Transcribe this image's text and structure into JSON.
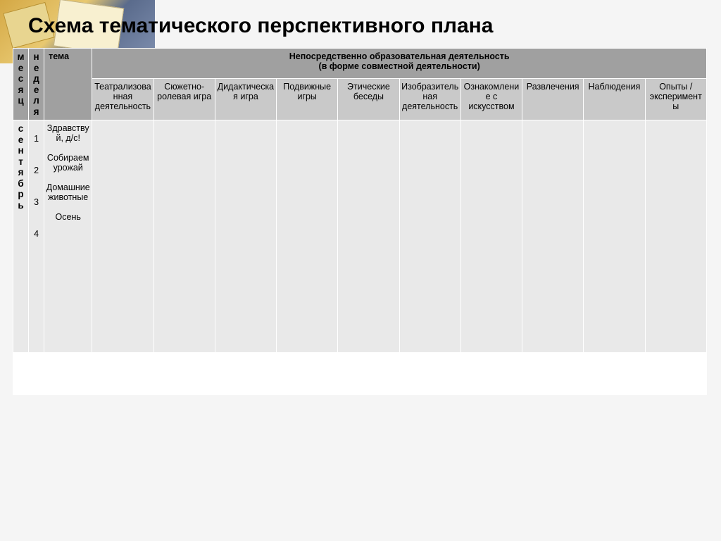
{
  "title": "Схема тематического перспективного плана",
  "header": {
    "month": "месяц",
    "week": "неделя",
    "topic": "тема",
    "merged_line1": "Непосредственно образовательная деятельность",
    "merged_line2": "(в форме совместной деятельности)",
    "activities": [
      "Театрализованная деятельность",
      "Сюжетно-ролевая игра",
      "Дидактическая игра",
      "Подвижные игры",
      "Этические беседы",
      "Изобразительная деятельность",
      "Ознакомление с искусством",
      "Развлечения",
      "Наблюдения",
      "Опыты / эксперименты"
    ]
  },
  "row": {
    "month": "сентябрь",
    "weeks": [
      "1",
      "2",
      "3",
      "4"
    ],
    "topics": [
      "Здравствуй, д/с!",
      "Собираем урожай",
      "Домашние животные",
      "Осень"
    ]
  },
  "colors": {
    "hdr_dark": "#a0a0a0",
    "hdr_light": "#c9c9c9",
    "body": "#e9e9e9",
    "border": "#ffffff"
  }
}
